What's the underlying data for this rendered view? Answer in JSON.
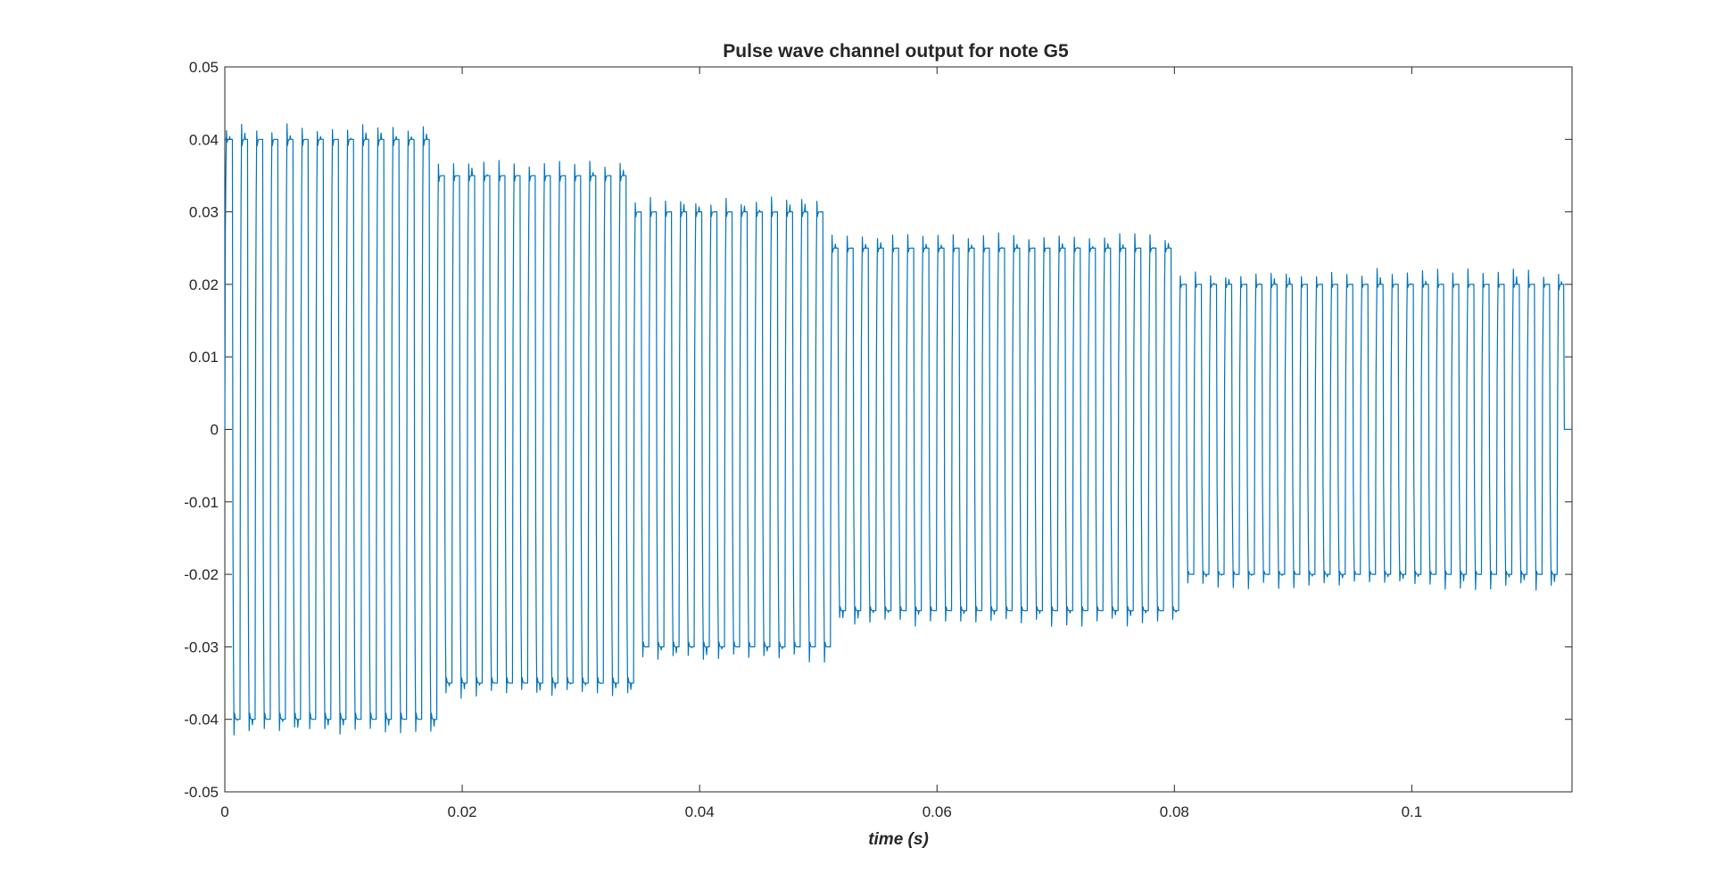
{
  "chart_data": {
    "type": "line",
    "title": "Pulse wave channel output for note G5",
    "xlabel": "time (s)",
    "ylabel": "",
    "xlim": [
      0,
      0.1135
    ],
    "ylim": [
      -0.05,
      0.05
    ],
    "xticks": [
      0,
      0.02,
      0.04,
      0.06,
      0.08,
      0.1
    ],
    "xtick_labels": [
      "0",
      "0.02",
      "0.04",
      "0.06",
      "0.08",
      "0.1"
    ],
    "yticks": [
      -0.05,
      -0.04,
      -0.03,
      -0.02,
      -0.01,
      0,
      0.01,
      0.02,
      0.03,
      0.04,
      0.05
    ],
    "ytick_labels": [
      "-0.05",
      "-0.04",
      "-0.03",
      "-0.02",
      "-0.01",
      "0",
      "0.01",
      "0.02",
      "0.03",
      "0.04",
      "0.05"
    ],
    "grid": false,
    "series": [
      {
        "color": "#0072BD",
        "note_frequency_hz": 783.99,
        "duty_cycle": 0.5,
        "amplitude_segments": [
          {
            "t_start": 0.0,
            "t_end": 0.0168,
            "amplitude": 0.04
          },
          {
            "t_start": 0.0168,
            "t_end": 0.0335,
            "amplitude": 0.035
          },
          {
            "t_start": 0.0335,
            "t_end": 0.0502,
            "amplitude": 0.03
          },
          {
            "t_start": 0.0502,
            "t_end": 0.0795,
            "amplitude": 0.025
          },
          {
            "t_start": 0.0795,
            "t_end": 0.1128,
            "amplitude": 0.02
          }
        ],
        "overshoot": 0.0022,
        "end_time": 0.1128
      }
    ]
  }
}
